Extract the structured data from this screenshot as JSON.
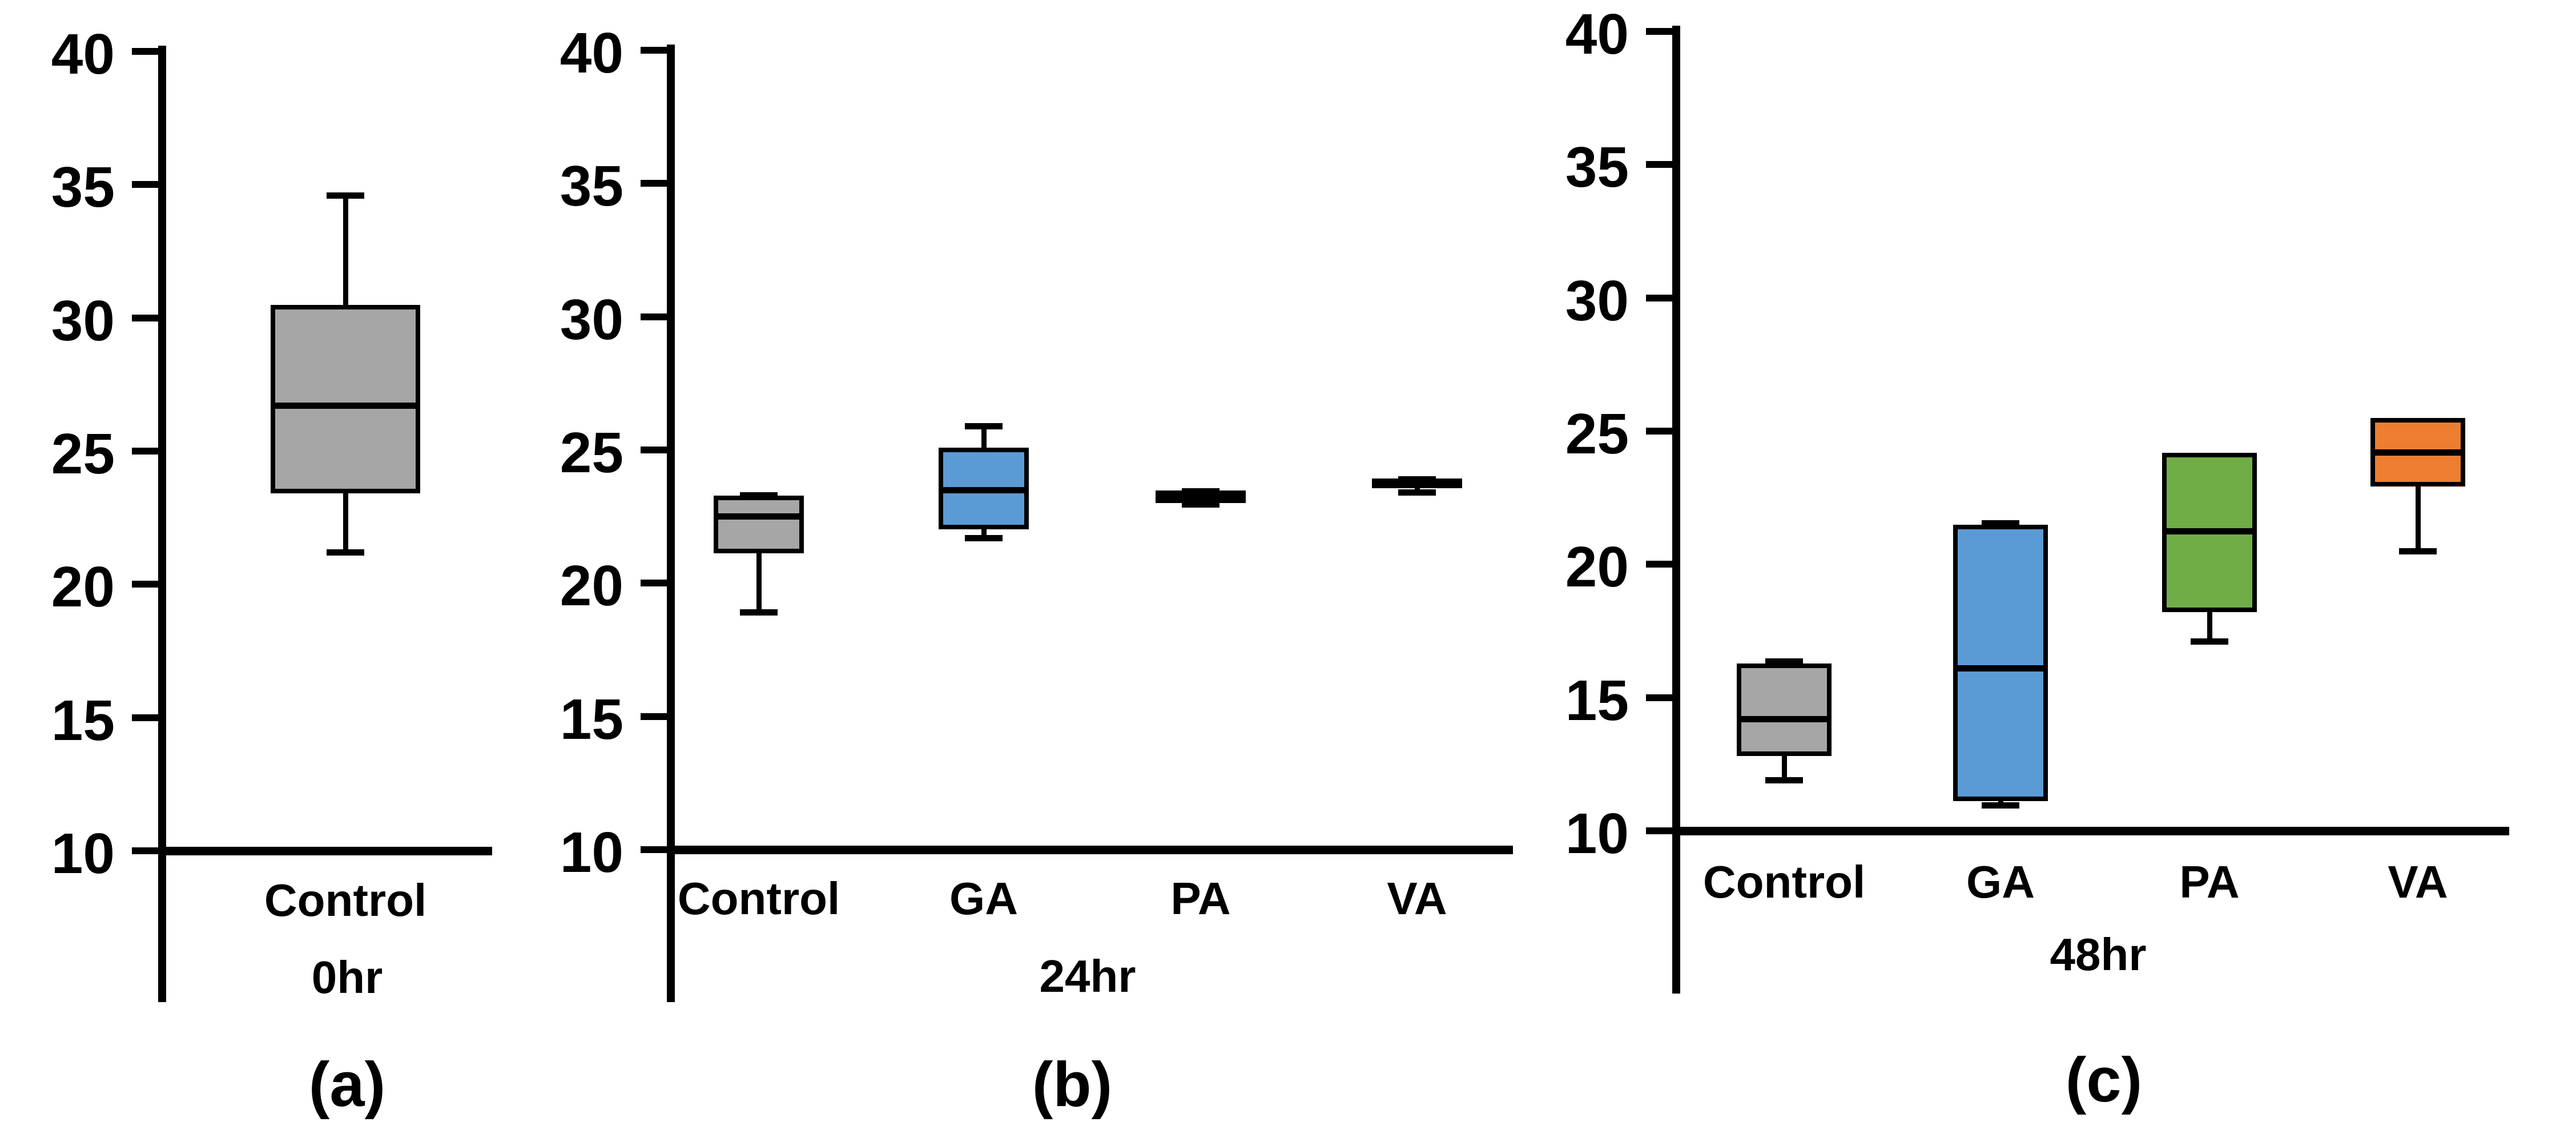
{
  "figure": {
    "background": "#ffffff",
    "text_color": "#000000",
    "colors": {
      "control": "#A6A6A6",
      "ga": "#5B9BD5",
      "pa": "#70AD47",
      "va": "#ED7D31",
      "axis": "#000000"
    }
  },
  "chart_data": [
    {
      "type": "boxplot",
      "panel_letter": "(a)",
      "group_label": "0hr",
      "categories": [
        "Control"
      ],
      "y_axis": {
        "min": 10,
        "max": 40,
        "tick_step": 5,
        "ticks": [
          40,
          35,
          30,
          25,
          20,
          15,
          10
        ],
        "grid": false
      },
      "series": [
        {
          "name": "Control",
          "color": "#A6A6A6",
          "whisker_low": 21.2,
          "q1": 23.5,
          "median": 26.7,
          "q3": 30.4,
          "whisker_high": 34.6
        }
      ]
    },
    {
      "type": "boxplot",
      "panel_letter": "(b)",
      "group_label": "24hr",
      "categories": [
        "Control",
        "GA",
        "PA",
        "VA"
      ],
      "y_axis": {
        "min": 10,
        "max": 40,
        "tick_step": 5,
        "ticks": [
          40,
          35,
          30,
          25,
          20,
          15,
          10
        ],
        "grid": false
      },
      "series": [
        {
          "name": "Control",
          "color": "#A6A6A6",
          "whisker_low": 18.9,
          "q1": 21.2,
          "median": 22.5,
          "q3": 23.2,
          "whisker_high": 23.3
        },
        {
          "name": "GA",
          "color": "#5B9BD5",
          "whisker_low": 21.7,
          "q1": 22.1,
          "median": 23.5,
          "q3": 25.0,
          "whisker_high": 25.9
        },
        {
          "name": "PA",
          "color": "#70AD47",
          "whisker_low": 22.95,
          "q1": 23.1,
          "median": 23.22,
          "q3": 23.4,
          "whisker_high": 23.45
        },
        {
          "name": "VA",
          "color": "#ED7D31",
          "whisker_low": 23.4,
          "q1": 23.65,
          "median": 23.75,
          "q3": 23.85,
          "whisker_high": 23.9
        }
      ]
    },
    {
      "type": "boxplot",
      "panel_letter": "(c)",
      "group_label": "48hr",
      "categories": [
        "Control",
        "GA",
        "PA",
        "VA"
      ],
      "y_axis": {
        "min": 10,
        "max": 40,
        "tick_step": 5,
        "ticks": [
          40,
          35,
          30,
          25,
          20,
          15,
          10
        ],
        "grid": false
      },
      "series": [
        {
          "name": "Control",
          "color": "#A6A6A6",
          "whisker_low": 11.9,
          "q1": 12.9,
          "median": 14.2,
          "q3": 16.2,
          "whisker_high": 16.35
        },
        {
          "name": "GA",
          "color": "#5B9BD5",
          "whisker_low": 10.95,
          "q1": 11.2,
          "median": 16.1,
          "q3": 21.4,
          "whisker_high": 21.55
        },
        {
          "name": "PA",
          "color": "#70AD47",
          "whisker_low": 17.1,
          "q1": 18.3,
          "median": 21.25,
          "q3": 24.1,
          "whisker_high": 24.1
        },
        {
          "name": "VA",
          "color": "#ED7D31",
          "whisker_low": 20.5,
          "q1": 23.0,
          "median": 24.2,
          "q3": 25.4,
          "whisker_high": 25.4
        }
      ]
    }
  ]
}
